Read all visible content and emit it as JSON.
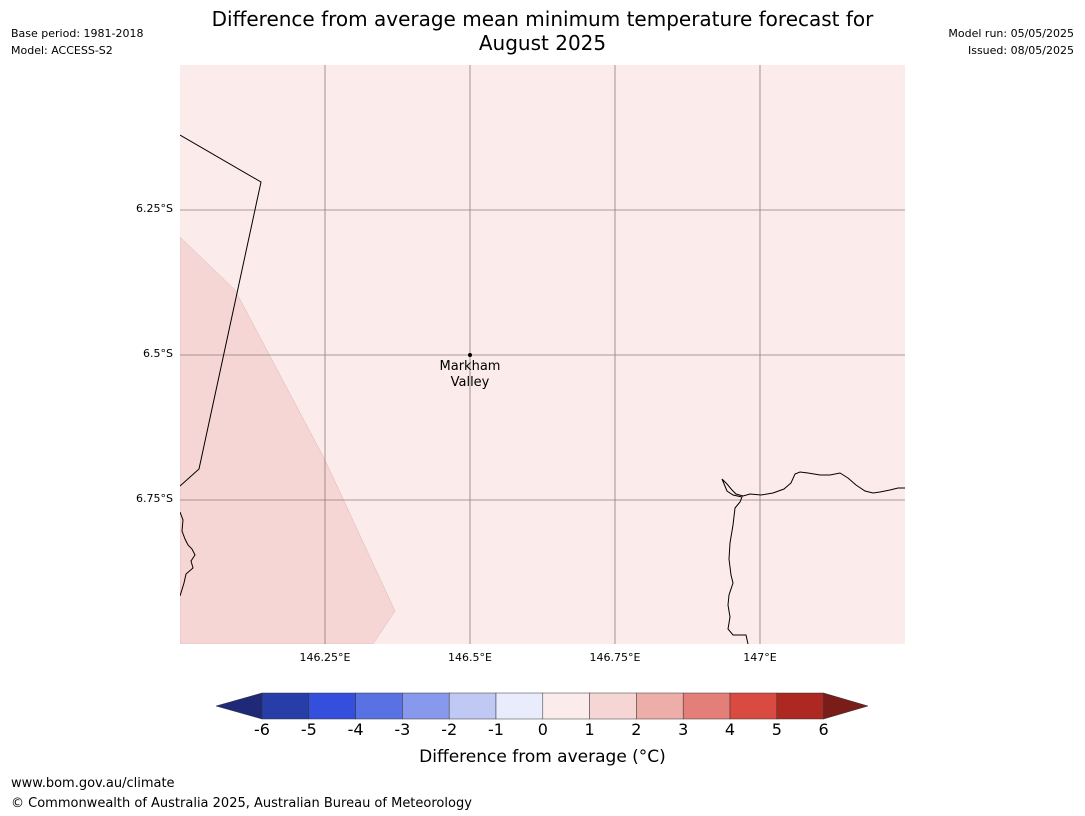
{
  "title": {
    "line1": "Difference from average mean minimum temperature forecast for",
    "line2": "August 2025"
  },
  "meta_left": {
    "base_period": "Base period: 1981-2018",
    "model": "Model: ACCESS-S2"
  },
  "meta_right": {
    "model_run": "Model run: 05/05/2025",
    "issued": "Issued: 08/05/2025"
  },
  "map": {
    "lat_ticks": [
      "6.25°S",
      "6.5°S",
      "6.75°S"
    ],
    "lon_ticks": [
      "146.25°E",
      "146.5°E",
      "146.75°E",
      "147°E"
    ],
    "place": {
      "name_line1": "Markham",
      "name_line2": "Valley"
    },
    "region_colors": {
      "bin_0_1": "#fbebea",
      "bin_1_2": "#f5d6d4",
      "gridline": "#7a6a6a",
      "coast": "#000000"
    }
  },
  "colorbar": {
    "ticks": [
      "-6",
      "-5",
      "-4",
      "-3",
      "-2",
      "-1",
      "0",
      "1",
      "2",
      "3",
      "4",
      "5",
      "6"
    ],
    "low_extend_color": "#1e2a78",
    "high_extend_color": "#7a1c18",
    "colors": [
      "#273ea9",
      "#334fdc",
      "#5872e4",
      "#8898ec",
      "#c0c8f4",
      "#e9ecfc",
      "#fbebea",
      "#f5d6d4",
      "#edaeaa",
      "#e47e78",
      "#d94a40",
      "#ad2820"
    ],
    "label": "Difference from average (°C)"
  },
  "footer": {
    "url": "www.bom.gov.au/climate",
    "copyright": "© Commonwealth of Australia 2025, Australian Bureau of Meteorology"
  }
}
